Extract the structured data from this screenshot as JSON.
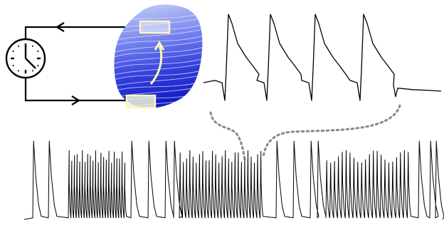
{
  "figure": {
    "colors": {
      "ink": "#000000",
      "heart_fill_light": "#c8d2f4",
      "heart_fill_mid": "#6474ea",
      "heart_fill_dark": "#1a22c8",
      "isochrone_line": "#dfe5ff",
      "highlight_box": "#fdf6b8",
      "highlight_box_fill": "#e9efd2",
      "dotted_link": "#888888"
    },
    "icons": [
      "clock-icon",
      "arrow-left-icon",
      "arrow-right-icon",
      "curved-arrow-icon"
    ],
    "chart_data": [
      {
        "type": "line",
        "title": "",
        "xlabel": "",
        "ylabel": "",
        "series": [
          {
            "name": "",
            "beats": 4,
            "peak": 1.0,
            "baseline": 0.1,
            "trough": -0.05
          }
        ],
        "grid": false,
        "legend": "none"
      },
      {
        "type": "line",
        "title": "",
        "xlabel": "",
        "ylabel": "",
        "series": [
          {
            "name": "",
            "pattern": [
              "slow",
              "fast",
              "slow",
              "fast",
              "slow",
              "fast",
              "slow"
            ],
            "slow_beats": [
              2,
              4,
              4,
              4
            ],
            "fast_beats": [
              22,
              26,
              22
            ]
          }
        ],
        "grid": false,
        "legend": "none"
      }
    ]
  }
}
